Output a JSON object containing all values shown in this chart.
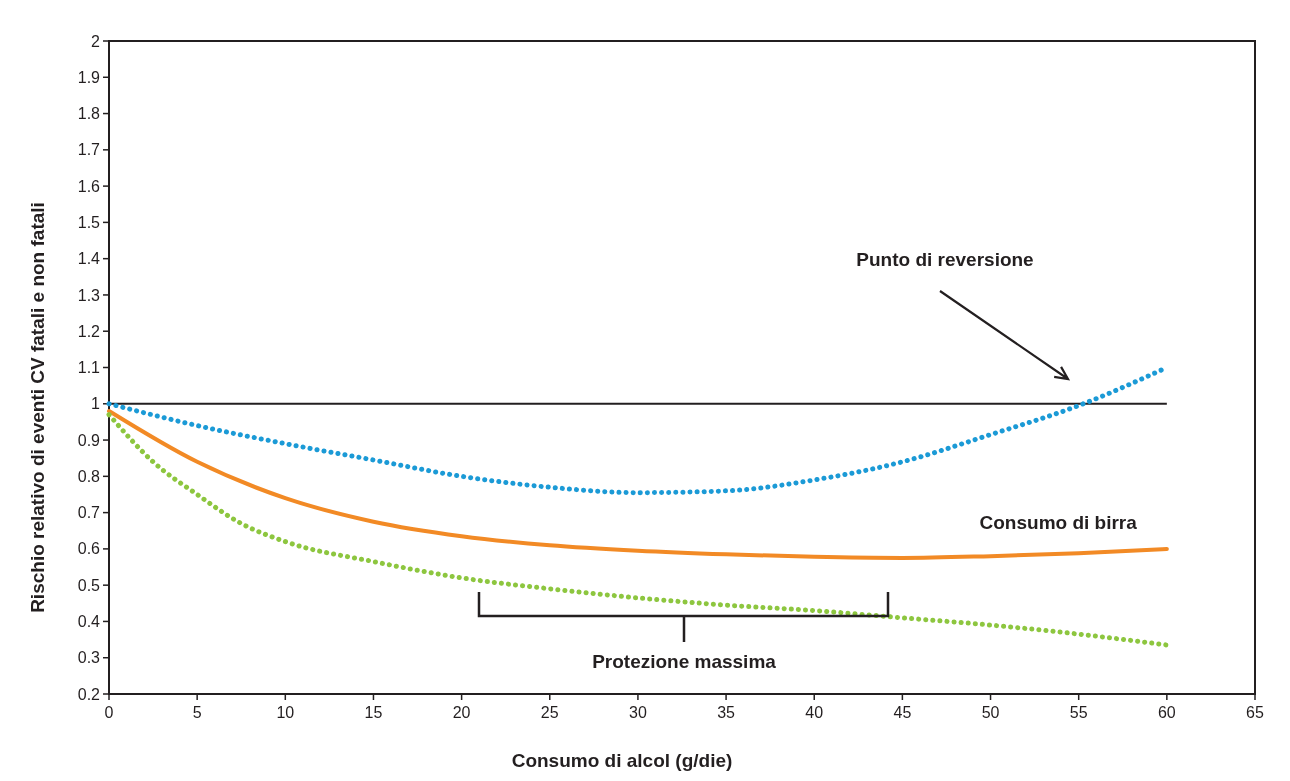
{
  "chart_data": {
    "type": "line",
    "xlabel": "Consumo di alcol (g/die)",
    "ylabel": "Rischio relativo di eventi CV fatali e non fatali",
    "xlim": [
      0,
      65
    ],
    "xticks": [
      0,
      5,
      10,
      15,
      20,
      25,
      30,
      35,
      40,
      45,
      50,
      55,
      60,
      65
    ],
    "ylim": [
      0.2,
      2
    ],
    "yticks": [
      0.2,
      0.3,
      0.4,
      0.5,
      0.6,
      0.7,
      0.8,
      0.9,
      1,
      1.1,
      1.2,
      1.3,
      1.4,
      1.5,
      1.6,
      1.7,
      1.8,
      1.9,
      2
    ],
    "grid": false,
    "series": [
      {
        "color": "#1b9ad6",
        "line_style": "dotted",
        "x": [
          0,
          5,
          10,
          15,
          20,
          25,
          30,
          35,
          40,
          45,
          50,
          55,
          60
        ],
        "values": [
          1.0,
          0.94,
          0.89,
          0.845,
          0.8,
          0.77,
          0.755,
          0.76,
          0.79,
          0.84,
          0.915,
          0.995,
          1.1
        ]
      },
      {
        "name": "Consumo di birra",
        "color": "#f28a25",
        "line_style": "solid",
        "x": [
          0,
          5,
          10,
          15,
          20,
          25,
          30,
          35,
          40,
          45,
          50,
          55,
          60
        ],
        "values": [
          0.98,
          0.84,
          0.74,
          0.675,
          0.635,
          0.61,
          0.595,
          0.585,
          0.578,
          0.575,
          0.58,
          0.588,
          0.6
        ]
      },
      {
        "color": "#8dc63f",
        "line_style": "dotted",
        "x": [
          0,
          2.5,
          5,
          7.5,
          10,
          15,
          20,
          25,
          30,
          35,
          40,
          45,
          50,
          55,
          60
        ],
        "values": [
          0.97,
          0.84,
          0.75,
          0.67,
          0.62,
          0.565,
          0.52,
          0.49,
          0.465,
          0.445,
          0.43,
          0.41,
          0.39,
          0.365,
          0.335
        ]
      }
    ],
    "ref_lines": [
      {
        "axis": "y",
        "value": 1,
        "color": "#231f20"
      }
    ],
    "annotations": [
      "Punto di reversione",
      "Protezione massima"
    ]
  }
}
